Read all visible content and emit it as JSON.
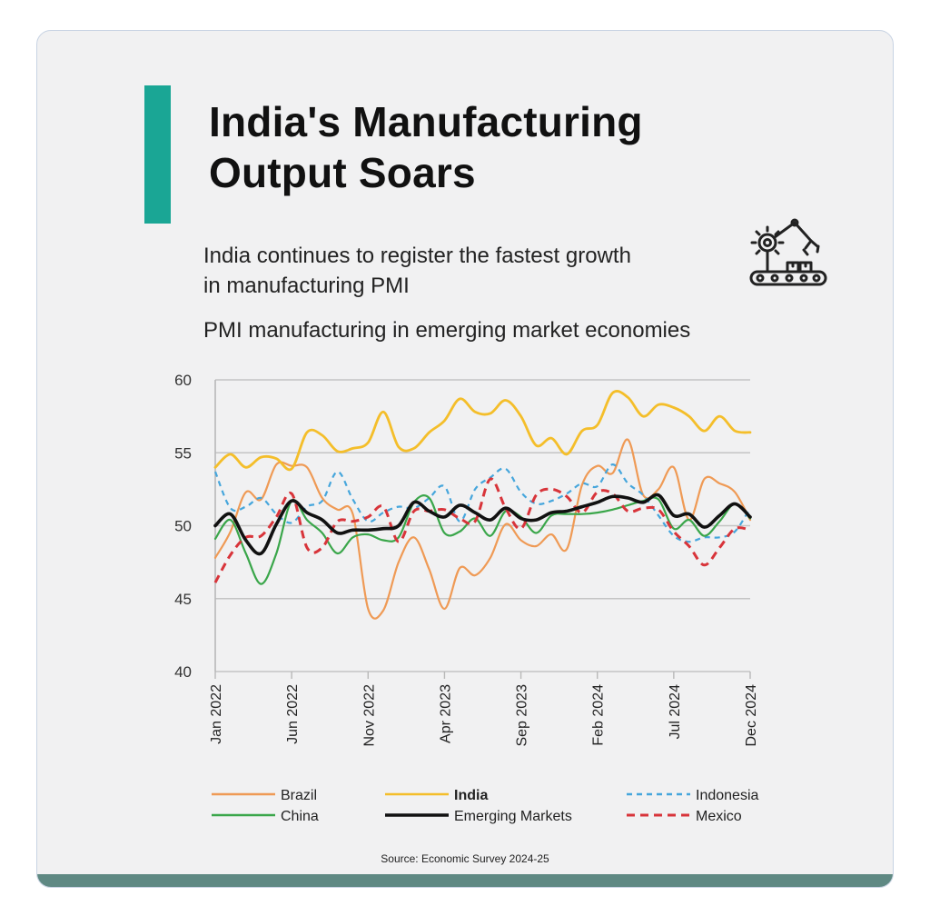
{
  "header": {
    "title_line1": "India's Manufacturing",
    "title_line2": "Output Soars",
    "subtitle_line1": "India continues to register the fastest growth",
    "subtitle_line2": "in manufacturing PMI",
    "chart_caption": "PMI manufacturing in emerging market economies"
  },
  "icon": "manufacturing-robot-arm-icon",
  "source": "Source: Economic Survey 2024-25",
  "colors": {
    "accent": "#1aa695",
    "band": "#5f8983",
    "Brazil": "#ef9a55",
    "India": "#f4be2a",
    "Indonesia": "#46a6dc",
    "China": "#3aa64a",
    "Emerging Markets": "#111111",
    "Mexico": "#d8343a"
  },
  "chart_data": {
    "type": "line",
    "x": [
      "Jan 2022",
      "Feb 2022",
      "Mar 2022",
      "Apr 2022",
      "May 2022",
      "Jun 2022",
      "Jul 2022",
      "Aug 2022",
      "Sep 2022",
      "Oct 2022",
      "Nov 2022",
      "Dec 2022",
      "Jan 2023",
      "Feb 2023",
      "Mar 2023",
      "Apr 2023",
      "May 2023",
      "Jun 2023",
      "Jul 2023",
      "Aug 2023",
      "Sep 2023",
      "Oct 2023",
      "Nov 2023",
      "Dec 2023",
      "Jan 2024",
      "Feb 2024",
      "Mar 2024",
      "Apr 2024",
      "May 2024",
      "Jun 2024",
      "Jul 2024",
      "Aug 2024",
      "Sep 2024",
      "Oct 2024",
      "Nov 2024",
      "Dec 2024"
    ],
    "x_ticks": [
      "Jan 2022",
      "Jun 2022",
      "Nov 2022",
      "Apr 2023",
      "Sep 2023",
      "Feb 2024",
      "Jul 2024",
      "Dec 2024"
    ],
    "y_ticks": [
      40,
      45,
      50,
      55,
      60
    ],
    "ylim": [
      40,
      60
    ],
    "grid": "horizontal",
    "legend_position": "bottom",
    "series": [
      {
        "name": "Brazil",
        "style": "solid",
        "values": [
          47.8,
          49.6,
          52.3,
          51.8,
          54.2,
          54.1,
          54.0,
          51.9,
          51.1,
          50.8,
          44.3,
          44.2,
          47.5,
          49.2,
          47.0,
          44.3,
          47.1,
          46.6,
          47.8,
          50.1,
          49.0,
          48.6,
          49.4,
          48.4,
          52.8,
          54.1,
          53.6,
          55.9,
          52.1,
          52.5,
          54.0,
          50.4,
          53.2,
          52.9,
          52.3,
          50.4
        ]
      },
      {
        "name": "India",
        "style": "solid",
        "bold": true,
        "values": [
          54.0,
          54.9,
          54.0,
          54.7,
          54.6,
          53.9,
          56.4,
          56.2,
          55.1,
          55.3,
          55.7,
          57.8,
          55.4,
          55.3,
          56.4,
          57.2,
          58.7,
          57.8,
          57.7,
          58.6,
          57.5,
          55.5,
          56.0,
          54.9,
          56.5,
          56.9,
          59.1,
          58.8,
          57.5,
          58.3,
          58.1,
          57.5,
          56.5,
          57.5,
          56.5,
          56.4
        ]
      },
      {
        "name": "Indonesia",
        "style": "dashed",
        "values": [
          53.7,
          51.2,
          51.3,
          51.9,
          50.8,
          50.2,
          51.3,
          51.7,
          53.7,
          51.8,
          50.3,
          50.9,
          51.3,
          51.2,
          51.9,
          52.7,
          50.3,
          52.5,
          53.3,
          53.9,
          52.3,
          51.5,
          51.7,
          52.2,
          52.9,
          52.7,
          54.2,
          52.9,
          52.1,
          50.7,
          49.3,
          48.9,
          49.2,
          49.2,
          49.6,
          51.2
        ]
      },
      {
        "name": "China",
        "style": "solid",
        "values": [
          49.1,
          50.4,
          48.1,
          46.0,
          48.1,
          51.7,
          50.4,
          49.5,
          48.1,
          49.2,
          49.4,
          49.0,
          49.2,
          51.6,
          51.9,
          49.5,
          49.6,
          50.5,
          49.3,
          51.0,
          50.6,
          49.5,
          50.7,
          50.8,
          50.8,
          50.9,
          51.1,
          51.4,
          51.7,
          51.8,
          49.8,
          50.4,
          49.3,
          50.3,
          51.5,
          50.5
        ]
      },
      {
        "name": "Emerging Markets",
        "style": "solid",
        "bold": true,
        "values": [
          50.0,
          50.8,
          49.0,
          48.1,
          50.1,
          51.7,
          50.9,
          50.4,
          49.5,
          49.7,
          49.7,
          49.8,
          50.0,
          51.6,
          51.0,
          50.6,
          51.4,
          50.9,
          50.4,
          51.2,
          50.5,
          50.4,
          50.9,
          51.0,
          51.3,
          51.6,
          52.0,
          51.9,
          51.6,
          52.1,
          50.7,
          50.8,
          49.9,
          50.7,
          51.5,
          50.6
        ]
      },
      {
        "name": "Mexico",
        "style": "dashed",
        "values": [
          46.1,
          48.0,
          49.2,
          49.3,
          50.6,
          52.2,
          48.5,
          48.5,
          50.3,
          50.3,
          50.6,
          51.3,
          48.9,
          51.0,
          51.0,
          51.1,
          50.5,
          50.3,
          53.2,
          51.2,
          49.8,
          52.1,
          52.5,
          52.0,
          50.9,
          52.3,
          52.2,
          51.0,
          51.2,
          51.1,
          49.6,
          48.6,
          47.3,
          48.5,
          49.8,
          49.7
        ]
      }
    ]
  }
}
